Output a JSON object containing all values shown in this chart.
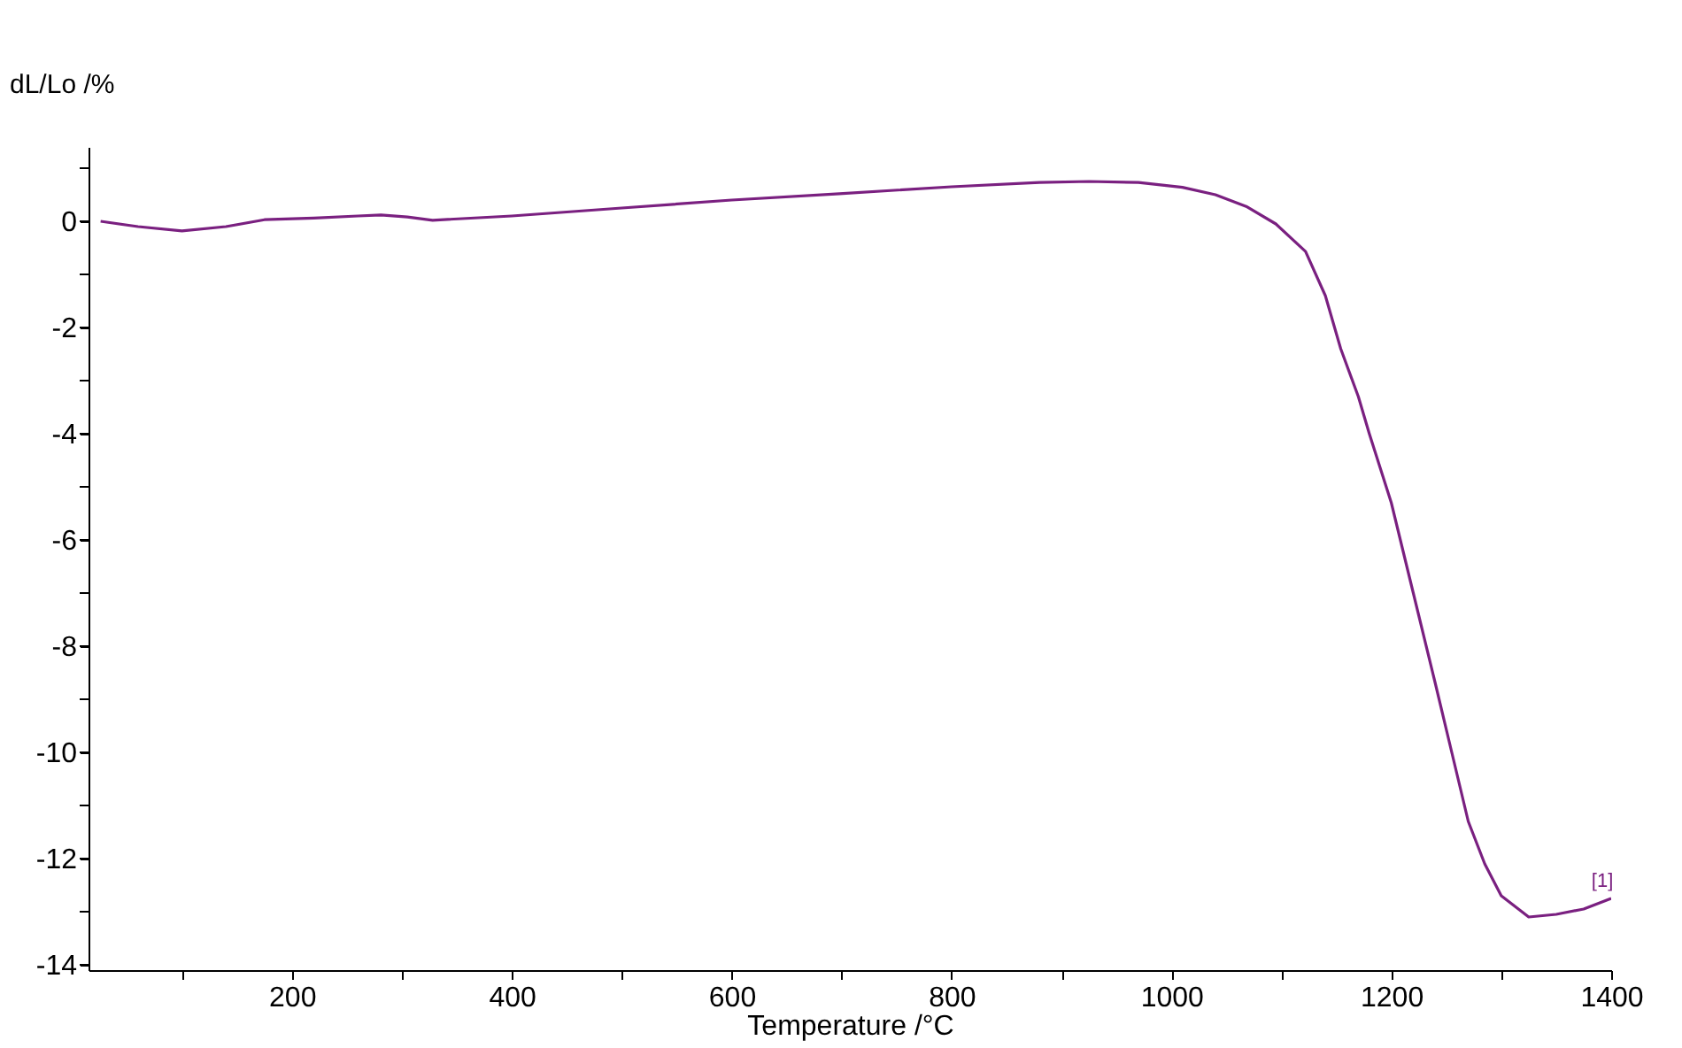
{
  "chart_data": {
    "type": "line",
    "xlabel": "Temperature /°C",
    "ylabel": "dL/Lo /%",
    "x": [
      26,
      60,
      100,
      140,
      175,
      220,
      260,
      281,
      305,
      328,
      400,
      500,
      600,
      698,
      800,
      880,
      925,
      970,
      1010,
      1040,
      1068,
      1095,
      1122,
      1140,
      1154,
      1170,
      1180,
      1200,
      1220,
      1240,
      1255,
      1270,
      1285,
      1300,
      1325,
      1350,
      1375,
      1400
    ],
    "series": [
      {
        "color": "#7a2080",
        "values": [
          0,
          -0.1,
          -0.18,
          -0.1,
          0.03,
          0.06,
          0.1,
          0.12,
          0.08,
          0.02,
          0.1,
          0.25,
          0.4,
          0.52,
          0.65,
          0.73,
          0.75,
          0.73,
          0.64,
          0.5,
          0.28,
          -0.05,
          -0.57,
          -1.4,
          -2.4,
          -3.3,
          -4.0,
          -5.3,
          -7.0,
          -8.7,
          -10.0,
          -11.3,
          -12.1,
          -12.7,
          -13.1,
          -13.05,
          -12.95,
          -12.75
        ]
      }
    ],
    "xlim": [
      15,
      1400
    ],
    "ylim": [
      -14.1,
      1.4
    ],
    "xticks": [
      {
        "value": 100,
        "label": null
      },
      200,
      {
        "value": 300,
        "label": null
      },
      400,
      {
        "value": 500,
        "label": null
      },
      600,
      {
        "value": 700,
        "label": null
      },
      800,
      {
        "value": 900,
        "label": null
      },
      1000,
      {
        "value": 1100,
        "label": null
      },
      1200,
      {
        "value": 1300,
        "label": null
      },
      1400
    ],
    "yticks": [
      {
        "value": 1,
        "label": null
      },
      0,
      {
        "value": -1,
        "label": null
      },
      -2,
      {
        "value": -3,
        "label": null
      },
      -4,
      {
        "value": -5,
        "label": null
      },
      -6,
      {
        "value": -7,
        "label": null
      },
      -8,
      {
        "value": -9,
        "label": null
      },
      -10,
      {
        "value": -11,
        "label": null
      },
      -12,
      {
        "value": -13,
        "label": null
      },
      -14
    ],
    "annotations": [
      {
        "text": "[1]",
        "x": 1392,
        "y": -12.6
      }
    ],
    "grid": false,
    "marker": "none",
    "line_style": "solid"
  }
}
